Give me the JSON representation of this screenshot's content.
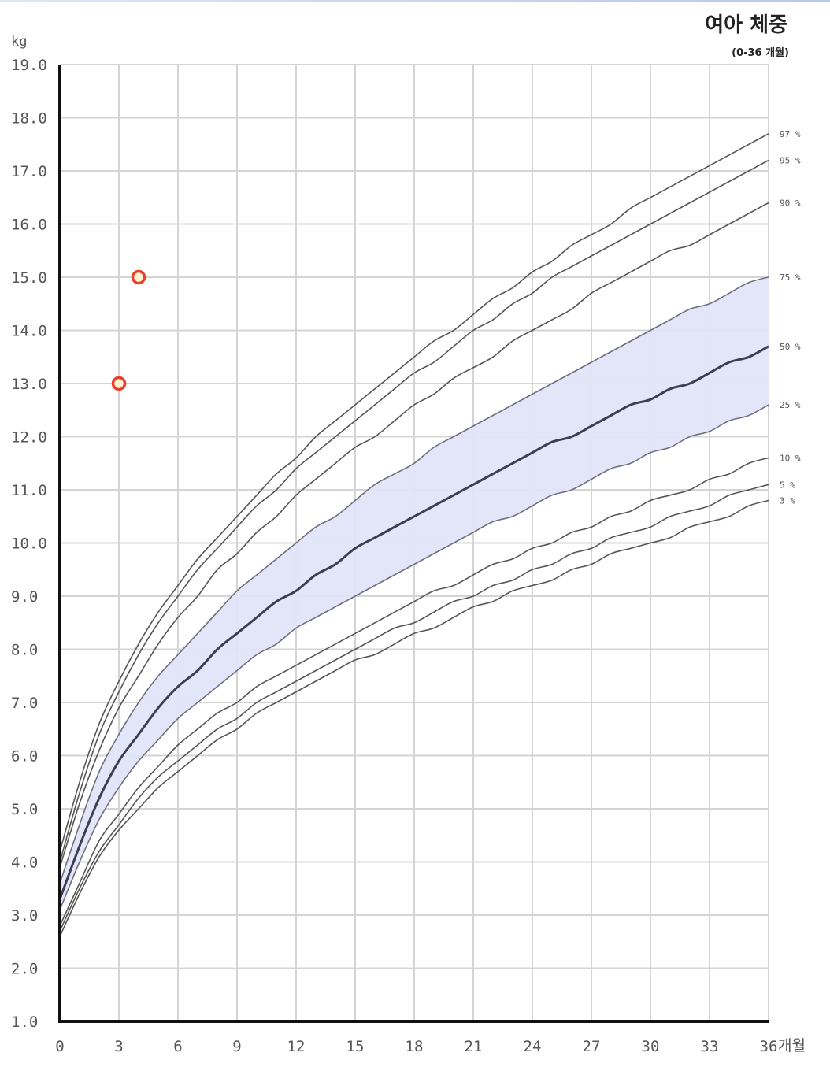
{
  "chart_data": {
    "type": "line",
    "title": "여아 체중",
    "subtitle": "(0-36 개월)",
    "ylabel": "kg",
    "xlabel": "개월",
    "xlim": [
      0,
      36
    ],
    "ylim": [
      1,
      19
    ],
    "x_ticks": [
      0,
      3,
      6,
      9,
      12,
      15,
      18,
      21,
      24,
      27,
      30,
      33,
      36
    ],
    "x_tick_labels": [
      "0",
      "3",
      "6",
      "9",
      "12",
      "15",
      "18",
      "21",
      "24",
      "27",
      "30",
      "33",
      "36"
    ],
    "y_ticks": [
      1,
      2,
      3,
      4,
      5,
      6,
      7,
      8,
      9,
      10,
      11,
      12,
      13,
      14,
      15,
      16,
      17,
      18,
      19
    ],
    "y_tick_labels": [
      "1.0",
      "2.0",
      "3.0",
      "4.0",
      "5.0",
      "6.0",
      "7.0",
      "8.0",
      "9.0",
      "10.0",
      "11.0",
      "12.0",
      "13.0",
      "14.0",
      "15.0",
      "16.0",
      "17.0",
      "18.0",
      "19.0"
    ],
    "grid": true,
    "x": [
      0,
      1,
      2,
      3,
      4,
      5,
      6,
      7,
      8,
      9,
      10,
      11,
      12,
      13,
      14,
      15,
      16,
      17,
      18,
      19,
      20,
      21,
      22,
      23,
      24,
      25,
      26,
      27,
      28,
      29,
      30,
      31,
      32,
      33,
      34,
      35,
      36
    ],
    "series": [
      {
        "name": "97 %",
        "values": [
          4.2,
          5.5,
          6.6,
          7.4,
          8.1,
          8.7,
          9.2,
          9.7,
          10.1,
          10.5,
          10.9,
          11.3,
          11.6,
          12.0,
          12.3,
          12.6,
          12.9,
          13.2,
          13.5,
          13.8,
          14.0,
          14.3,
          14.6,
          14.8,
          15.1,
          15.3,
          15.6,
          15.8,
          16.0,
          16.3,
          16.5,
          16.7,
          16.9,
          17.1,
          17.3,
          17.5,
          17.7
        ]
      },
      {
        "name": "95 %",
        "values": [
          4.0,
          5.3,
          6.4,
          7.2,
          7.9,
          8.5,
          9.0,
          9.5,
          9.9,
          10.3,
          10.7,
          11.0,
          11.4,
          11.7,
          12.0,
          12.3,
          12.6,
          12.9,
          13.2,
          13.4,
          13.7,
          14.0,
          14.2,
          14.5,
          14.7,
          15.0,
          15.2,
          15.4,
          15.6,
          15.8,
          16.0,
          16.2,
          16.4,
          16.6,
          16.8,
          17.0,
          17.2
        ]
      },
      {
        "name": "90 %",
        "values": [
          3.9,
          5.1,
          6.1,
          6.9,
          7.5,
          8.1,
          8.6,
          9.0,
          9.5,
          9.8,
          10.2,
          10.5,
          10.9,
          11.2,
          11.5,
          11.8,
          12.0,
          12.3,
          12.6,
          12.8,
          13.1,
          13.3,
          13.5,
          13.8,
          14.0,
          14.2,
          14.4,
          14.7,
          14.9,
          15.1,
          15.3,
          15.5,
          15.6,
          15.8,
          16.0,
          16.2,
          16.4
        ]
      },
      {
        "name": "75 %",
        "values": [
          3.6,
          4.7,
          5.7,
          6.4,
          7.0,
          7.5,
          7.9,
          8.3,
          8.7,
          9.1,
          9.4,
          9.7,
          10.0,
          10.3,
          10.5,
          10.8,
          11.1,
          11.3,
          11.5,
          11.8,
          12.0,
          12.2,
          12.4,
          12.6,
          12.8,
          13.0,
          13.2,
          13.4,
          13.6,
          13.8,
          14.0,
          14.2,
          14.4,
          14.5,
          14.7,
          14.9,
          15.0
        ]
      },
      {
        "name": "50 %",
        "values": [
          3.3,
          4.3,
          5.2,
          5.9,
          6.4,
          6.9,
          7.3,
          7.6,
          8.0,
          8.3,
          8.6,
          8.9,
          9.1,
          9.4,
          9.6,
          9.9,
          10.1,
          10.3,
          10.5,
          10.7,
          10.9,
          11.1,
          11.3,
          11.5,
          11.7,
          11.9,
          12.0,
          12.2,
          12.4,
          12.6,
          12.7,
          12.9,
          13.0,
          13.2,
          13.4,
          13.5,
          13.7
        ]
      },
      {
        "name": "25 %",
        "values": [
          3.1,
          4.0,
          4.8,
          5.4,
          5.9,
          6.3,
          6.7,
          7.0,
          7.3,
          7.6,
          7.9,
          8.1,
          8.4,
          8.6,
          8.8,
          9.0,
          9.2,
          9.4,
          9.6,
          9.8,
          10.0,
          10.2,
          10.4,
          10.5,
          10.7,
          10.9,
          11.0,
          11.2,
          11.4,
          11.5,
          11.7,
          11.8,
          12.0,
          12.1,
          12.3,
          12.4,
          12.6
        ]
      },
      {
        "name": "10 %",
        "values": [
          2.8,
          3.6,
          4.4,
          4.9,
          5.4,
          5.8,
          6.2,
          6.5,
          6.8,
          7.0,
          7.3,
          7.5,
          7.7,
          7.9,
          8.1,
          8.3,
          8.5,
          8.7,
          8.9,
          9.1,
          9.2,
          9.4,
          9.6,
          9.7,
          9.9,
          10.0,
          10.2,
          10.3,
          10.5,
          10.6,
          10.8,
          10.9,
          11.0,
          11.2,
          11.3,
          11.5,
          11.6
        ]
      },
      {
        "name": "5 %",
        "values": [
          2.7,
          3.5,
          4.2,
          4.7,
          5.2,
          5.6,
          5.9,
          6.2,
          6.5,
          6.7,
          7.0,
          7.2,
          7.4,
          7.6,
          7.8,
          8.0,
          8.2,
          8.4,
          8.5,
          8.7,
          8.9,
          9.0,
          9.2,
          9.3,
          9.5,
          9.6,
          9.8,
          9.9,
          10.1,
          10.2,
          10.3,
          10.5,
          10.6,
          10.7,
          10.9,
          11.0,
          11.1
        ]
      },
      {
        "name": "3 %",
        "values": [
          2.6,
          3.4,
          4.1,
          4.6,
          5.0,
          5.4,
          5.7,
          6.0,
          6.3,
          6.5,
          6.8,
          7.0,
          7.2,
          7.4,
          7.6,
          7.8,
          7.9,
          8.1,
          8.3,
          8.4,
          8.6,
          8.8,
          8.9,
          9.1,
          9.2,
          9.3,
          9.5,
          9.6,
          9.8,
          9.9,
          10.0,
          10.1,
          10.3,
          10.4,
          10.5,
          10.7,
          10.8
        ]
      }
    ],
    "shaded_band": {
      "from": "75 %",
      "to": "25 %",
      "color": "#e2e4f9"
    },
    "highlight_series": "50 %",
    "points": [
      {
        "x": 3.0,
        "y": 13.0
      },
      {
        "x": 4.0,
        "y": 15.0
      }
    ],
    "colors": {
      "line": "#555555",
      "median_line": "#3e3e50",
      "band_fill": "#e2e4f9",
      "band_edge": "#6f6f80",
      "grid": "#d4d4d4",
      "axis": "#111111",
      "point_stroke": "#e8402a",
      "point_fill": "#fff3d0"
    }
  }
}
